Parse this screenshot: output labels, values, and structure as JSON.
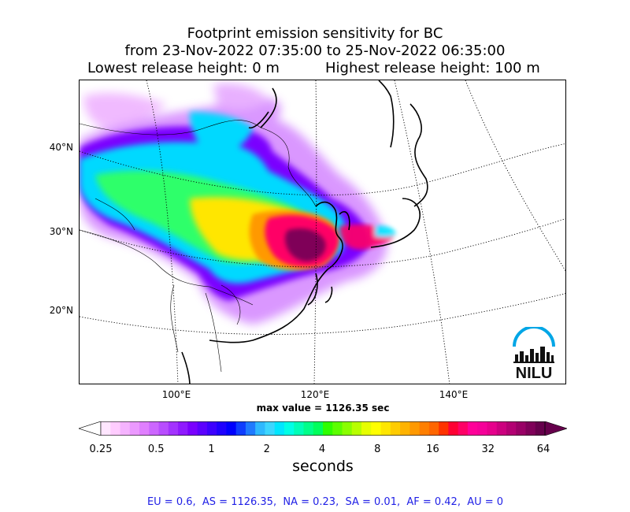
{
  "header": {
    "title_line1": "Footprint emission sensitivity for BC",
    "title_line2": "from 23-Nov-2022 07:35:00 to 25-Nov-2022 06:35:00",
    "lowest_release": "Lowest release height: 0 m",
    "highest_release": "Highest release height: 100 m"
  },
  "map": {
    "lat_labels": [
      "40°N",
      "30°N",
      "20°N"
    ],
    "lon_labels": [
      "100°E",
      "120°E",
      "140°E"
    ],
    "logo_text": "NILU",
    "colors": {
      "logo_blue": "#00a6e6",
      "logo_dark": "#111111",
      "coast": "#000000",
      "border": "#000000"
    }
  },
  "max_value_text": "max value = 1126.35 sec",
  "colorbar": {
    "tick_labels": [
      "0.25",
      "0.5",
      "1",
      "2",
      "4",
      "8",
      "16",
      "32",
      "64"
    ],
    "unit_label": "seconds",
    "colors": [
      "#ffe6ff",
      "#ffccff",
      "#f5b3ff",
      "#eb99ff",
      "#e07fff",
      "#cc66ff",
      "#b84dff",
      "#a333ff",
      "#8f1aff",
      "#7a00ff",
      "#5c00ff",
      "#3d00ff",
      "#1f00ff",
      "#0000ff",
      "#0f3dff",
      "#1f7aff",
      "#2eb8ff",
      "#3dd6ff",
      "#00e6ff",
      "#00ffe6",
      "#00ffb8",
      "#00ff8a",
      "#00ff5c",
      "#2eff00",
      "#5cff00",
      "#8aff00",
      "#b8ff00",
      "#e6ff00",
      "#ffff00",
      "#ffe600",
      "#ffcc00",
      "#ffb300",
      "#ff9900",
      "#ff7f00",
      "#ff6600",
      "#ff3300",
      "#ff0033",
      "#ff0066",
      "#ff0099",
      "#f50099",
      "#e6008c",
      "#cc007f",
      "#b30073",
      "#990066",
      "#7f0059",
      "#66004c"
    ]
  },
  "stats": "EU = 0.6,  AS = 1126.35,  NA = 0.23,  SA = 0.01,  AF = 0.42,  AU = 0"
}
